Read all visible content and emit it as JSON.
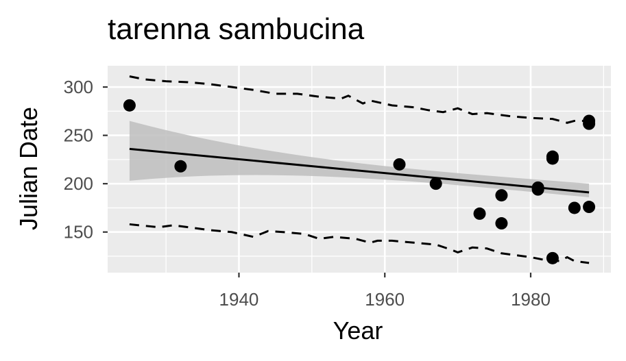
{
  "chart_data": {
    "type": "scatter",
    "title": "tarenna sambucina",
    "xlabel": "Year",
    "ylabel": "Julian Date",
    "xlim": [
      1922,
      1991
    ],
    "ylim": [
      108,
      322
    ],
    "x_ticks": [
      1940,
      1960,
      1980
    ],
    "y_ticks": [
      150,
      200,
      250,
      300
    ],
    "grid": true,
    "points": [
      {
        "x": 1925,
        "y": 281
      },
      {
        "x": 1932,
        "y": 218
      },
      {
        "x": 1962,
        "y": 220
      },
      {
        "x": 1967,
        "y": 200
      },
      {
        "x": 1973,
        "y": 169
      },
      {
        "x": 1976,
        "y": 188
      },
      {
        "x": 1976,
        "y": 159
      },
      {
        "x": 1981,
        "y": 196
      },
      {
        "x": 1981,
        "y": 194
      },
      {
        "x": 1983,
        "y": 228
      },
      {
        "x": 1983,
        "y": 226
      },
      {
        "x": 1983,
        "y": 123
      },
      {
        "x": 1986,
        "y": 175
      },
      {
        "x": 1988,
        "y": 265
      },
      {
        "x": 1988,
        "y": 262
      },
      {
        "x": 1988,
        "y": 176
      }
    ],
    "trend_line": {
      "x": [
        1925,
        1988
      ],
      "y": [
        236,
        191
      ]
    },
    "confidence_band": {
      "x": [
        1925,
        1988
      ],
      "upper": [
        265,
        204
      ],
      "lower": [
        203,
        182
      ],
      "color": "#bebebe"
    },
    "upper_bound": {
      "style": "dashed",
      "x": [
        1925,
        1927,
        1930,
        1933,
        1936,
        1939,
        1942,
        1945,
        1948,
        1951,
        1954,
        1955,
        1957,
        1958,
        1961,
        1964,
        1966,
        1968,
        1970,
        1972,
        1974,
        1977,
        1980,
        1983,
        1985,
        1986,
        1988
      ],
      "y": [
        311,
        308,
        306,
        305,
        303,
        300,
        297,
        293,
        293,
        290,
        288,
        291,
        283,
        286,
        281,
        279,
        276,
        274,
        278,
        272,
        273,
        270,
        268,
        267,
        263,
        265,
        265
      ]
    },
    "lower_bound": {
      "style": "dashed",
      "x": [
        1925,
        1929,
        1931,
        1933,
        1936,
        1939,
        1942,
        1944,
        1946,
        1949,
        1951,
        1953,
        1956,
        1958,
        1959,
        1961,
        1964,
        1967,
        1969,
        1970,
        1972,
        1974,
        1976,
        1978,
        1980,
        1982,
        1984,
        1985,
        1986,
        1988
      ],
      "y": [
        158,
        155,
        157,
        155,
        152,
        150,
        145,
        151,
        150,
        148,
        143,
        145,
        143,
        139,
        141,
        141,
        139,
        137,
        132,
        129,
        134,
        133,
        128,
        126,
        124,
        121,
        120,
        124,
        120,
        118
      ]
    },
    "colors": {
      "panel": "#ebebeb",
      "grid": "#ffffff",
      "points": "#000000",
      "band": "#bebebe"
    }
  }
}
